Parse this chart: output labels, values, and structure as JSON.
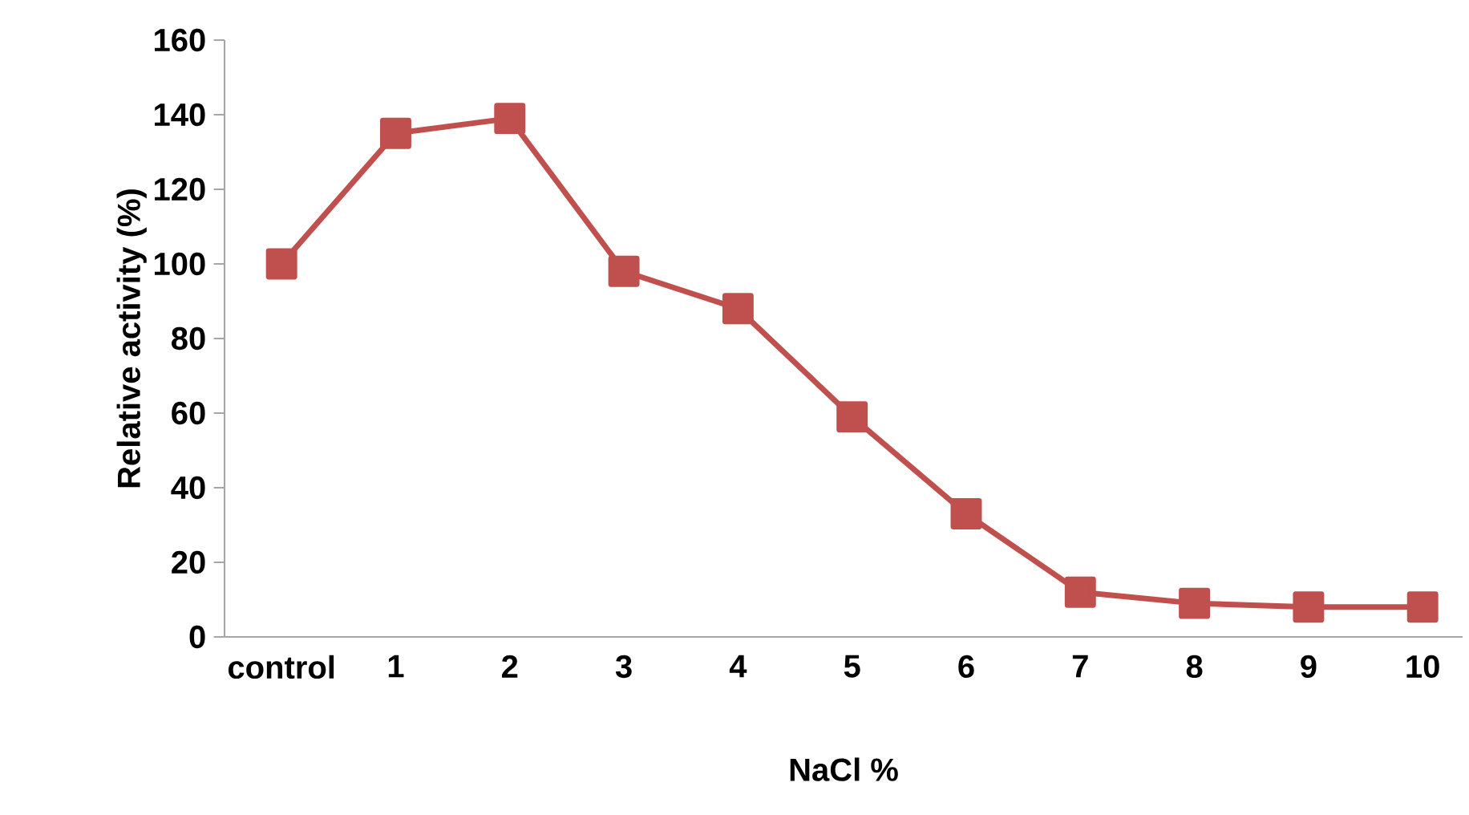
{
  "chart_data": {
    "type": "line",
    "xlabel": "NaCl %",
    "ylabel": "Relative activity (%)",
    "categories": [
      "control",
      "1",
      "2",
      "3",
      "4",
      "5",
      "6",
      "7",
      "8",
      "9",
      "10"
    ],
    "values": [
      100,
      135,
      139,
      98,
      88,
      59,
      33,
      12,
      9,
      8,
      8
    ],
    "color": "#c0504d",
    "marker": "square",
    "ylim": [
      0,
      160
    ],
    "yticks": [
      0,
      20,
      40,
      60,
      80,
      100,
      120,
      140,
      160
    ]
  }
}
